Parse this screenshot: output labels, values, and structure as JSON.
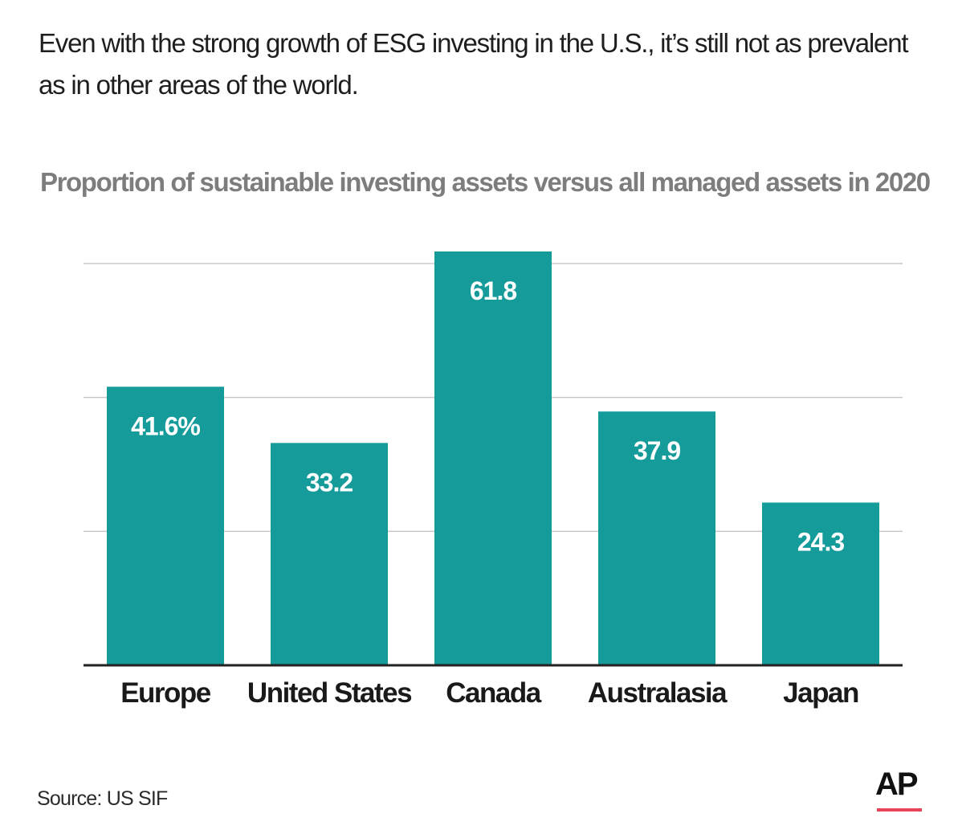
{
  "headline": "Even with the strong growth of ESG investing in the U.S., it’s still not as prevalent as in other areas of the world.",
  "source": "Source: US SIF",
  "logo": {
    "text": "AP",
    "accent_color": "#e8455a"
  },
  "colors": {
    "bar": "#169b9b",
    "grid": "#c8c8c8",
    "axis": "#222222"
  },
  "chart_data": {
    "type": "bar",
    "title": "Proportion of sustainable investing assets versus all managed assets in 2020",
    "categories": [
      "Europe",
      "United States",
      "Canada",
      "Australasia",
      "Japan"
    ],
    "values": [
      41.6,
      33.2,
      61.8,
      37.9,
      24.3
    ],
    "data_labels": [
      "41.6%",
      "33.2",
      "61.8",
      "37.9",
      "24.3"
    ],
    "unit": "%",
    "ylim": [
      0,
      60
    ],
    "gridlines": [
      20,
      40,
      60
    ],
    "grid": true,
    "legend": "none"
  }
}
